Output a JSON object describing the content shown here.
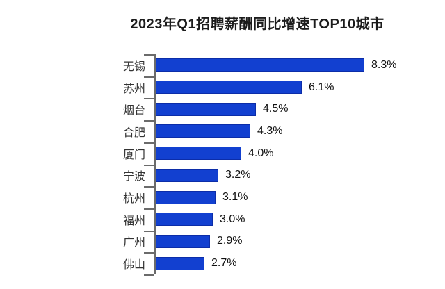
{
  "title": "2023年Q1招聘薪酬同比增速TOP10城市",
  "chart_data": {
    "type": "bar",
    "orientation": "horizontal",
    "title": "2023年Q1招聘薪酬同比增速TOP10城市",
    "categories": [
      "无锡",
      "苏州",
      "烟台",
      "合肥",
      "厦门",
      "宁波",
      "杭州",
      "福州",
      "广州",
      "佛山"
    ],
    "values": [
      8.3,
      6.1,
      4.5,
      4.3,
      4.0,
      3.2,
      3.1,
      3.0,
      2.9,
      2.7
    ],
    "value_labels": [
      "8.3%",
      "6.1%",
      "4.5%",
      "4.3%",
      "4.0%",
      "3.2%",
      "3.1%",
      "3.0%",
      "2.9%",
      "2.7%"
    ],
    "xlabel": "",
    "ylabel": "",
    "xlim": [
      1.0,
      8.3
    ],
    "grid": false,
    "legend": false,
    "bar_color": "#1240d0",
    "bar_border_color": "#0c2da8",
    "axis_color": "#6b6b6b",
    "background_color": "#ffffff"
  }
}
